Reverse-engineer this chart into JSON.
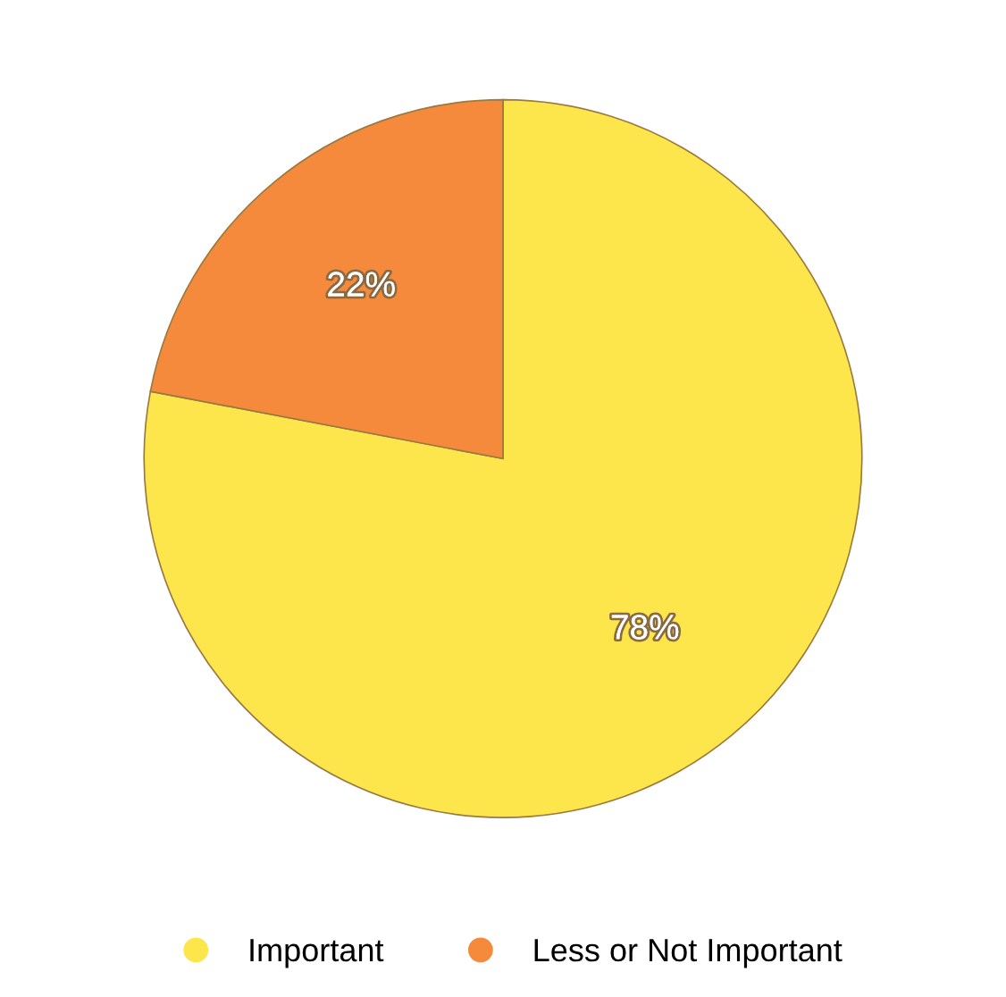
{
  "chart_data": {
    "type": "pie",
    "categories": [
      "Important",
      "Less or Not Important"
    ],
    "values": [
      78,
      22
    ],
    "colors": [
      "#fde64b",
      "#f58a3c"
    ],
    "value_labels": [
      "78%",
      "22%"
    ],
    "legend": "bottom"
  }
}
